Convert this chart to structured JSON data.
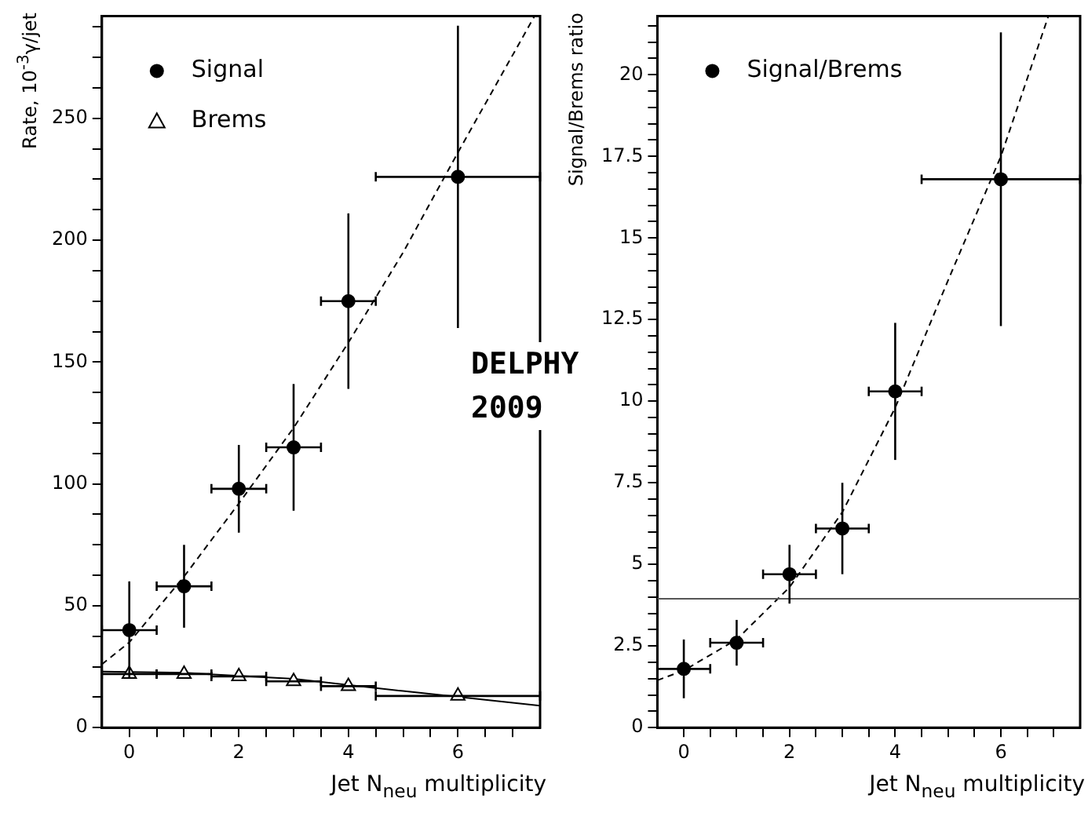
{
  "chart_data": [
    {
      "type": "scatter",
      "ylabel": "Rate, 10$^{-3}$γ/jet",
      "xlabel": "Jet N$_{neu}$ multiplicity",
      "legend": "top left",
      "grid": false,
      "annotations": [
        "DELPHY 2009"
      ],
      "xlim": [
        -0.5,
        7.5
      ],
      "xticks": [
        0,
        {
          "value": 0.5,
          "label": null
        },
        {
          "value": 1,
          "label": null
        },
        {
          "value": 1.5,
          "label": null
        },
        2,
        {
          "value": 2.5,
          "label": null
        },
        {
          "value": 3,
          "label": null
        },
        {
          "value": 3.5,
          "label": null
        },
        4,
        {
          "value": 4.5,
          "label": null
        },
        {
          "value": 5,
          "label": null
        },
        {
          "value": 5.5,
          "label": null
        },
        6,
        {
          "value": 6.5,
          "label": null
        },
        {
          "value": 7,
          "label": null
        }
      ],
      "ylim": [
        0,
        292
      ],
      "yticks": [
        0,
        {
          "value": 12.5,
          "label": null
        },
        {
          "value": 25,
          "label": null
        },
        {
          "value": 37.5,
          "label": null
        },
        50,
        {
          "value": 62.5,
          "label": null
        },
        {
          "value": 75,
          "label": null
        },
        {
          "value": 87.5,
          "label": null
        },
        100,
        {
          "value": 112.5,
          "label": null
        },
        {
          "value": 125,
          "label": null
        },
        {
          "value": 137.5,
          "label": null
        },
        150,
        {
          "value": 162.5,
          "label": null
        },
        {
          "value": 175,
          "label": null
        },
        {
          "value": 187.5,
          "label": null
        },
        200,
        {
          "value": 212.5,
          "label": null
        },
        {
          "value": 225,
          "label": null
        },
        {
          "value": 237.5,
          "label": null
        },
        250,
        {
          "value": 262.5,
          "label": null
        },
        {
          "value": 275,
          "label": null
        },
        {
          "value": 287.5,
          "label": null
        }
      ],
      "series": [
        {
          "name": "Signal",
          "type": "scatter",
          "marker": "circle",
          "color": "#000000",
          "x": [
            0,
            1,
            2,
            3,
            4,
            6
          ],
          "values": [
            40,
            58,
            98,
            115,
            175,
            226
          ],
          "errors": [
            20,
            17,
            18,
            26,
            36,
            62
          ],
          "xerrors": [
            0.5,
            0.5,
            0.5,
            0.5,
            0.5,
            1.5
          ]
        },
        {
          "name": "Brems",
          "type": "scatter",
          "marker": "triangle",
          "color": "#000000",
          "x": [
            0,
            1,
            2,
            3,
            4,
            6
          ],
          "values": [
            22,
            22,
            21,
            19,
            17,
            13
          ],
          "xerrors": [
            0.5,
            0.5,
            0.5,
            0.5,
            0.5,
            1.5
          ]
        },
        {
          "type": "line",
          "line_style": "dashed",
          "marker": "none",
          "color": "#000000",
          "x": [
            -0.5,
            0,
            1,
            2,
            3,
            4,
            5,
            6,
            7.4
          ],
          "values": [
            26,
            35,
            62,
            92,
            123,
            158,
            195,
            236,
            292
          ]
        },
        {
          "type": "line",
          "line_style": "solid",
          "marker": "none",
          "color": "#000000",
          "x": [
            -0.5,
            1,
            3,
            5,
            7.5
          ],
          "values": [
            23,
            22.5,
            20,
            15,
            9
          ]
        }
      ]
    },
    {
      "type": "scatter",
      "ylabel": "Signal/Brems ratio",
      "xlabel": "Jet N$_{neu}$ multiplicity",
      "legend": "top left",
      "grid": false,
      "xlim": [
        -0.5,
        7.5
      ],
      "xticks": [
        0,
        {
          "value": 0.5,
          "label": null
        },
        {
          "value": 1,
          "label": null
        },
        {
          "value": 1.5,
          "label": null
        },
        2,
        {
          "value": 2.5,
          "label": null
        },
        {
          "value": 3,
          "label": null
        },
        {
          "value": 3.5,
          "label": null
        },
        4,
        {
          "value": 4.5,
          "label": null
        },
        {
          "value": 5,
          "label": null
        },
        {
          "value": 5.5,
          "label": null
        },
        6,
        {
          "value": 6.5,
          "label": null
        },
        {
          "value": 7,
          "label": null
        }
      ],
      "ylim": [
        0,
        21.8
      ],
      "yticks": [
        0,
        {
          "value": 0.5,
          "label": null
        },
        {
          "value": 1,
          "label": null
        },
        {
          "value": 1.5,
          "label": null
        },
        {
          "value": 2,
          "label": null
        },
        2.5,
        {
          "value": 3,
          "label": null
        },
        {
          "value": 3.5,
          "label": null
        },
        {
          "value": 4,
          "label": null
        },
        {
          "value": 4.5,
          "label": null
        },
        5,
        {
          "value": 5.5,
          "label": null
        },
        {
          "value": 6,
          "label": null
        },
        {
          "value": 6.5,
          "label": null
        },
        {
          "value": 7,
          "label": null
        },
        7.5,
        {
          "value": 8,
          "label": null
        },
        {
          "value": 8.5,
          "label": null
        },
        {
          "value": 9,
          "label": null
        },
        {
          "value": 9.5,
          "label": null
        },
        10,
        {
          "value": 10.5,
          "label": null
        },
        {
          "value": 11,
          "label": null
        },
        {
          "value": 11.5,
          "label": null
        },
        {
          "value": 12,
          "label": null
        },
        12.5,
        {
          "value": 13,
          "label": null
        },
        {
          "value": 13.5,
          "label": null
        },
        {
          "value": 14,
          "label": null
        },
        {
          "value": 14.5,
          "label": null
        },
        15,
        {
          "value": 15.5,
          "label": null
        },
        {
          "value": 16,
          "label": null
        },
        {
          "value": 16.5,
          "label": null
        },
        {
          "value": 17,
          "label": null
        },
        17.5,
        {
          "value": 18,
          "label": null
        },
        {
          "value": 18.5,
          "label": null
        },
        {
          "value": 19,
          "label": null
        },
        {
          "value": 19.5,
          "label": null
        },
        20,
        {
          "value": 20.5,
          "label": null
        },
        {
          "value": 21,
          "label": null
        },
        {
          "value": 21.5,
          "label": null
        }
      ],
      "ref_lines": [
        {
          "axis": "y",
          "value": 3.95,
          "color": "#555555"
        }
      ],
      "series": [
        {
          "name": "Signal/Brems",
          "type": "scatter",
          "marker": "circle",
          "color": "#000000",
          "x": [
            0,
            1,
            2,
            3,
            4,
            6
          ],
          "values": [
            1.8,
            2.6,
            4.7,
            6.1,
            10.3,
            16.8
          ],
          "errors": [
            0.9,
            0.7,
            0.9,
            1.4,
            2.1,
            4.5
          ],
          "xerrors": [
            0.5,
            0.5,
            0.5,
            0.5,
            0.5,
            1.5
          ]
        },
        {
          "type": "line",
          "line_style": "dashed",
          "marker": "none",
          "color": "#000000",
          "x": [
            -0.5,
            0,
            1,
            2,
            3,
            4,
            5,
            6,
            6.9
          ],
          "values": [
            1.45,
            1.75,
            2.7,
            4.3,
            6.6,
            9.8,
            13.7,
            17.5,
            21.8
          ]
        }
      ]
    }
  ]
}
